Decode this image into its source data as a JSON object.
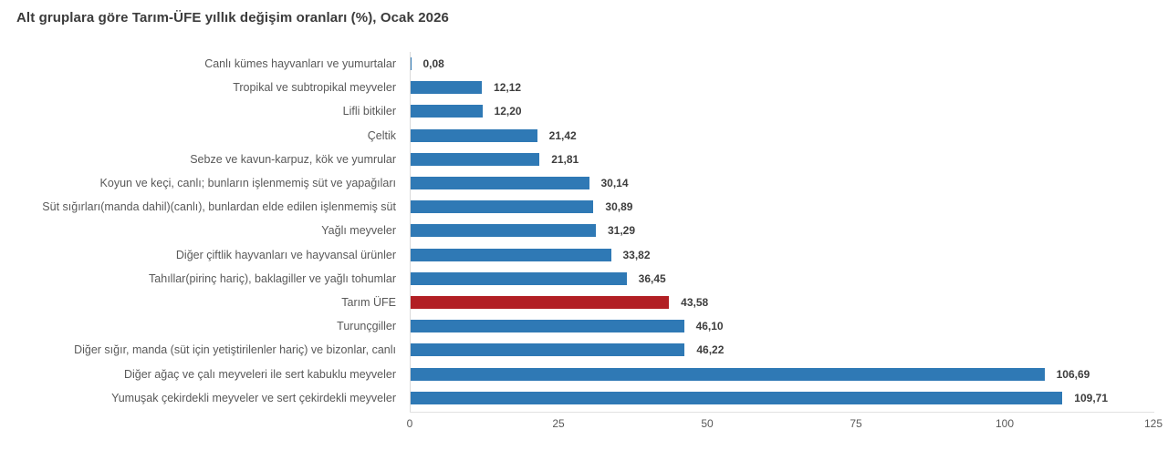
{
  "chart_data": {
    "type": "bar",
    "orientation": "horizontal",
    "title": "Alt gruplara göre Tarım-ÜFE yıllık değişim oranları (%), Ocak 2026",
    "categories": [
      "Canlı kümes hayvanları ve yumurtalar",
      "Tropikal ve subtropikal meyveler",
      "Lifli bitkiler",
      "Çeltik",
      "Sebze ve kavun-karpuz, kök ve yumrular",
      "Koyun ve keçi, canlı; bunların işlenmemiş süt ve yapağıları",
      "Süt sığırları(manda dahil)(canlı), bunlardan elde edilen işlenmemiş süt",
      "Yağlı meyveler",
      "Diğer çiftlik hayvanları ve hayvansal ürünler",
      "Tahıllar(pirinç hariç), baklagiller ve yağlı tohumlar",
      "Tarım ÜFE",
      "Turunçgiller",
      "Diğer sığır, manda (süt için yetiştirilenler hariç) ve bizonlar, canlı",
      "Diğer ağaç ve çalı meyveleri ile sert kabuklu meyveler",
      "Yumuşak çekirdekli meyveler ve sert çekirdekli meyveler"
    ],
    "values": [
      0.08,
      12.12,
      12.2,
      21.42,
      21.81,
      30.14,
      30.89,
      31.29,
      33.82,
      36.45,
      43.58,
      46.1,
      46.22,
      106.69,
      109.71
    ],
    "value_labels": [
      "0,08",
      "12,12",
      "12,20",
      "21,42",
      "21,81",
      "30,14",
      "30,89",
      "31,29",
      "33,82",
      "36,45",
      "43,58",
      "46,10",
      "46,22",
      "106,69",
      "109,71"
    ],
    "highlight_index": 10,
    "highlight_category": "Tarım ÜFE",
    "bar_color": "#2f79b5",
    "highlight_color": "#b21f24",
    "xlabel": "",
    "ylabel": "",
    "xlim": [
      0,
      125
    ],
    "x_ticks": [
      0,
      25,
      50,
      75,
      100,
      125
    ],
    "x_tick_labels": [
      "0",
      "25",
      "50",
      "75",
      "100",
      "125"
    ],
    "grid": false,
    "legend": null
  }
}
